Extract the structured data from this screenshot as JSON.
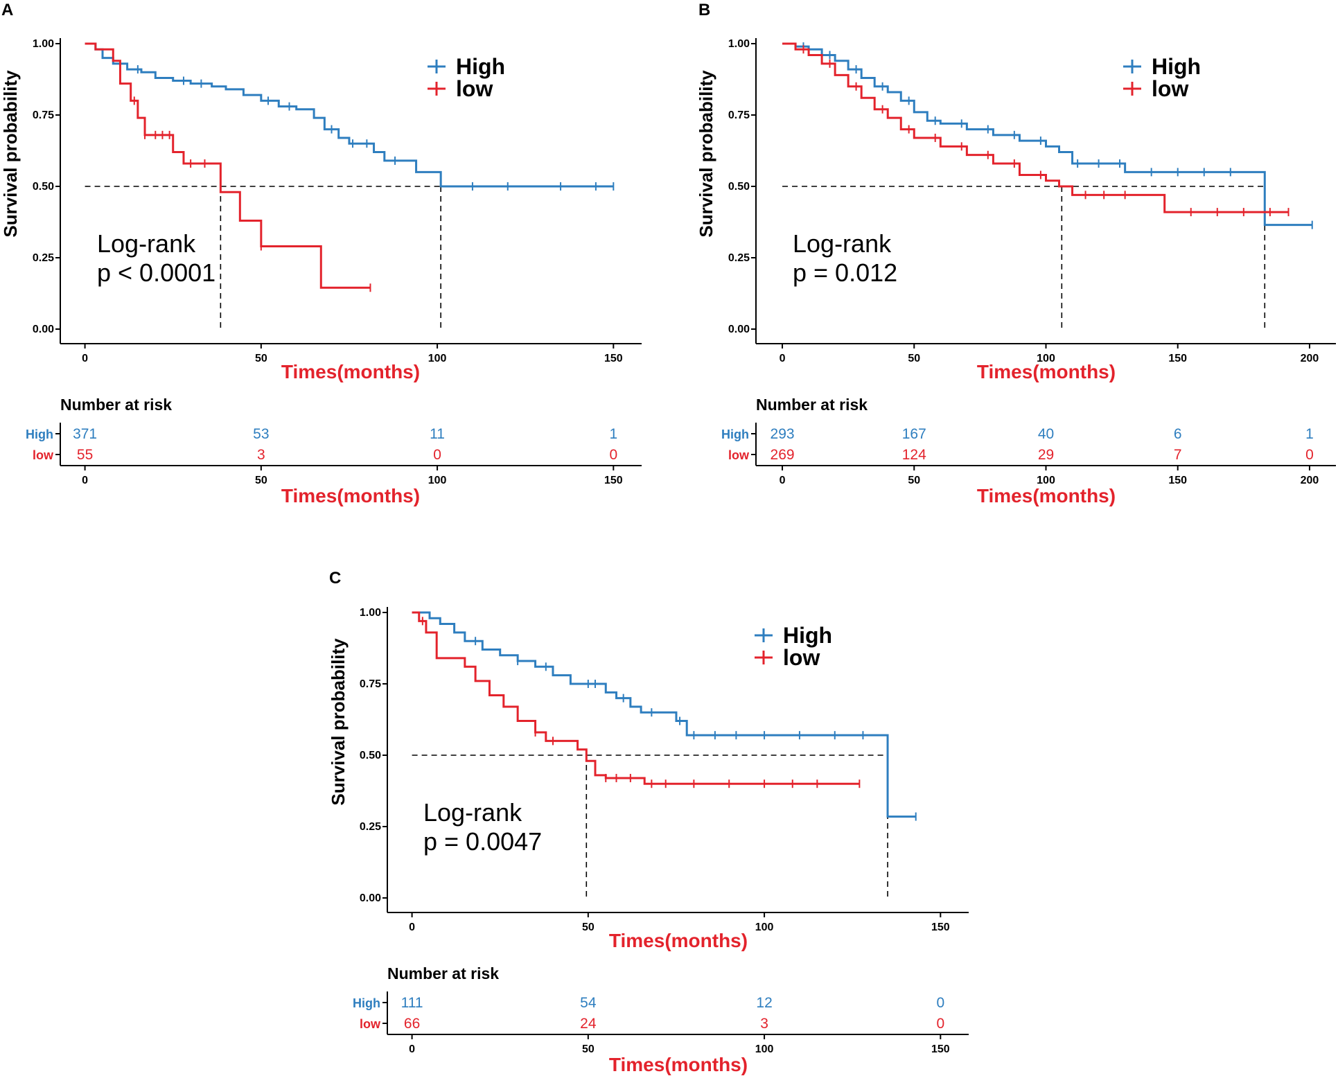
{
  "colors": {
    "high": "#2E7EBF",
    "low": "#E3232C",
    "axis": "#000000",
    "title": "#E3232C"
  },
  "chart_data": [
    {
      "panel_label": "A",
      "type": "line",
      "subtype": "kaplan-meier",
      "ylabel": "Survival probability",
      "xlabel": "Times(months)",
      "xlim": [
        -7,
        158
      ],
      "ylim": [
        0,
        1
      ],
      "x_ticks": [
        0,
        50,
        100,
        150
      ],
      "y_ticks": [
        "0.00",
        "0.25",
        "0.50",
        "0.75",
        "1.00"
      ],
      "legend": [
        "High",
        "low"
      ],
      "annotation": [
        "Log-rank",
        "p < 0.0001"
      ],
      "median_line": {
        "y": 0.5,
        "x_end": 101,
        "drops": [
          38.5,
          101
        ]
      },
      "series": [
        {
          "name": "High",
          "x": [
            0,
            3,
            5,
            8,
            12,
            16,
            20,
            25,
            30,
            36,
            40,
            45,
            50,
            55,
            60,
            65,
            68,
            72,
            75,
            82,
            85,
            94,
            101,
            150
          ],
          "y": [
            1.0,
            0.98,
            0.95,
            0.93,
            0.91,
            0.9,
            0.88,
            0.87,
            0.86,
            0.85,
            0.84,
            0.82,
            0.8,
            0.78,
            0.77,
            0.74,
            0.7,
            0.67,
            0.65,
            0.62,
            0.59,
            0.55,
            0.5,
            0.5
          ],
          "censor": [
            15,
            28,
            33,
            52,
            58,
            70,
            76,
            80,
            88,
            110,
            120,
            135,
            145,
            150
          ]
        },
        {
          "name": "low",
          "x": [
            0,
            3,
            8,
            10,
            13,
            15,
            17,
            25,
            28,
            38.5,
            44,
            50,
            67,
            81
          ],
          "y": [
            1.0,
            0.98,
            0.94,
            0.86,
            0.8,
            0.74,
            0.68,
            0.62,
            0.58,
            0.48,
            0.38,
            0.29,
            0.145,
            0.145
          ],
          "censor": [
            14,
            17,
            20,
            22,
            24,
            30,
            34,
            50,
            81
          ]
        }
      ],
      "risk_table": {
        "title": "Number at risk",
        "times": [
          0,
          50,
          100,
          150
        ],
        "rows": [
          {
            "name": "High",
            "counts": [
              "371",
              "53",
              "11",
              "1"
            ]
          },
          {
            "name": "low",
            "counts": [
              "55",
              "3",
              "0",
              "0"
            ]
          }
        ]
      }
    },
    {
      "panel_label": "B",
      "type": "line",
      "subtype": "kaplan-meier",
      "ylabel": "Survival probability",
      "xlabel": "Times(months)",
      "xlim": [
        -10,
        210
      ],
      "ylim": [
        0,
        1
      ],
      "x_ticks": [
        0,
        50,
        100,
        150,
        200
      ],
      "y_ticks": [
        "0.00",
        "0.25",
        "0.50",
        "0.75",
        "1.00"
      ],
      "legend": [
        "High",
        "low"
      ],
      "annotation": [
        "Log-rank",
        "p = 0.012"
      ],
      "median_line": {
        "y": 0.5,
        "x_end": 183,
        "drops": [
          106,
          183
        ]
      },
      "series": [
        {
          "name": "High",
          "x": [
            0,
            5,
            10,
            15,
            20,
            25,
            30,
            35,
            40,
            45,
            50,
            55,
            60,
            70,
            80,
            90,
            100,
            105,
            110,
            130,
            183,
            201
          ],
          "y": [
            1.0,
            0.99,
            0.98,
            0.96,
            0.94,
            0.91,
            0.88,
            0.85,
            0.83,
            0.8,
            0.76,
            0.73,
            0.72,
            0.7,
            0.68,
            0.66,
            0.64,
            0.62,
            0.58,
            0.55,
            0.365,
            0.365
          ],
          "censor": [
            8,
            18,
            28,
            38,
            48,
            58,
            68,
            78,
            88,
            98,
            112,
            120,
            128,
            140,
            150,
            160,
            170,
            201
          ]
        },
        {
          "name": "low",
          "x": [
            0,
            5,
            10,
            15,
            20,
            25,
            30,
            35,
            40,
            45,
            50,
            60,
            70,
            80,
            90,
            100,
            105,
            110,
            145,
            192
          ],
          "y": [
            1.0,
            0.98,
            0.96,
            0.93,
            0.89,
            0.85,
            0.81,
            0.77,
            0.74,
            0.7,
            0.67,
            0.64,
            0.61,
            0.58,
            0.54,
            0.52,
            0.5,
            0.47,
            0.41,
            0.41
          ],
          "censor": [
            8,
            18,
            28,
            38,
            48,
            58,
            68,
            78,
            88,
            98,
            115,
            122,
            130,
            155,
            165,
            175,
            185,
            192
          ]
        }
      ],
      "risk_table": {
        "title": "Number at risk",
        "times": [
          0,
          50,
          100,
          150,
          200
        ],
        "rows": [
          {
            "name": "High",
            "counts": [
              "293",
              "167",
              "40",
              "6",
              "1"
            ]
          },
          {
            "name": "low",
            "counts": [
              "269",
              "124",
              "29",
              "7",
              "0"
            ]
          }
        ]
      }
    },
    {
      "panel_label": "C",
      "type": "line",
      "subtype": "kaplan-meier",
      "ylabel": "Survival probability",
      "xlabel": "Times(months)",
      "xlim": [
        -7,
        158
      ],
      "ylim": [
        0,
        1
      ],
      "x_ticks": [
        0,
        50,
        100,
        150
      ],
      "y_ticks": [
        "0.00",
        "0.25",
        "0.50",
        "0.75",
        "1.00"
      ],
      "legend": [
        "High",
        "low"
      ],
      "annotation": [
        "Log-rank",
        "p = 0.0047"
      ],
      "median_line": {
        "y": 0.5,
        "x_end": 135,
        "drops": [
          49.5,
          135
        ]
      },
      "series": [
        {
          "name": "High",
          "x": [
            0,
            5,
            8,
            12,
            15,
            20,
            25,
            30,
            35,
            40,
            45,
            55,
            58,
            62,
            65,
            70,
            75,
            78,
            135,
            143
          ],
          "y": [
            1.0,
            0.98,
            0.96,
            0.93,
            0.9,
            0.87,
            0.85,
            0.83,
            0.81,
            0.78,
            0.75,
            0.72,
            0.7,
            0.67,
            0.65,
            0.65,
            0.62,
            0.57,
            0.285,
            0.285
          ],
          "censor": [
            18,
            30,
            38,
            50,
            52,
            60,
            68,
            76,
            80,
            86,
            92,
            100,
            110,
            120,
            128,
            143
          ]
        },
        {
          "name": "low",
          "x": [
            0,
            2,
            4,
            7,
            15,
            18,
            22,
            26,
            30,
            35,
            38,
            42,
            47,
            49.5,
            52,
            55,
            66,
            127
          ],
          "y": [
            1.0,
            0.97,
            0.93,
            0.84,
            0.81,
            0.76,
            0.71,
            0.67,
            0.62,
            0.58,
            0.55,
            0.55,
            0.52,
            0.48,
            0.43,
            0.42,
            0.4,
            0.4
          ],
          "censor": [
            3,
            35,
            40,
            55,
            58,
            62,
            68,
            72,
            80,
            90,
            100,
            108,
            115,
            127
          ]
        }
      ],
      "risk_table": {
        "title": "Number at risk",
        "times": [
          0,
          50,
          100,
          150
        ],
        "rows": [
          {
            "name": "High",
            "counts": [
              "111",
              "54",
              "12",
              "0"
            ]
          },
          {
            "name": "low",
            "counts": [
              "66",
              "24",
              "3",
              "0"
            ]
          }
        ]
      }
    }
  ]
}
